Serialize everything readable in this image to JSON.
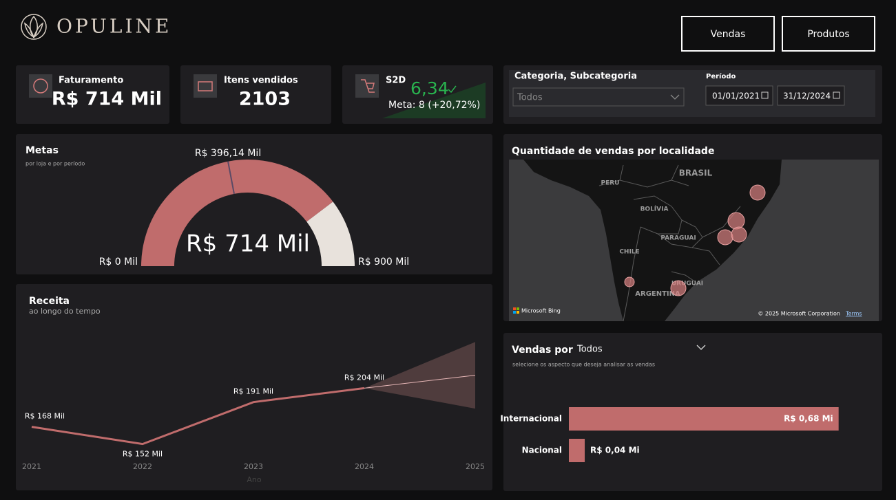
{
  "header": {
    "brand": "OPULINE",
    "buttons": [
      "Vendas",
      "Produtos"
    ]
  },
  "kpis": [
    {
      "label": "Faturamento",
      "value": "R$ 714 Mil"
    },
    {
      "label": "Itens vendidos",
      "value": "2103"
    },
    {
      "label": "S2D",
      "value": "6,34",
      "goal": "Meta: 8 (+20,72%)"
    }
  ],
  "filters": {
    "category_label": "Categoria, Subcategoria",
    "category_value": "Todos",
    "period_label": "Período",
    "start": "01/01/2021",
    "end": "31/12/2024"
  },
  "gauge": {
    "title": "Metas",
    "subtitle": "por loja e por período",
    "value": 714,
    "value_label": "R$ 714 Mil",
    "min": 0,
    "min_label": "R$ 0 Mil",
    "max": 900,
    "max_label": "R$ 900 Mil",
    "target": 396.14,
    "target_label": "R$ 396,14 Mil"
  },
  "map": {
    "title": "Quantidade de vendas por localidade",
    "labels": [
      "BRASIL",
      "PERU",
      "BOLÍVIA",
      "PARAGUAI",
      "CHILE",
      "URUGUAI",
      "ARGENTINA"
    ],
    "provider": "Microsoft Bing",
    "copyright": "© 2025 Microsoft Corporation",
    "terms": "Terms"
  },
  "receita": {
    "type": "line",
    "title": "Receita",
    "subtitle": "ao longo do tempo",
    "x_label": "Ano",
    "color": "#c06c6c",
    "categories": [
      "2021",
      "2022",
      "2023",
      "2024",
      "2025"
    ],
    "values": [
      168,
      152,
      191,
      204,
      null
    ],
    "value_labels": [
      "R$ 168 Mil",
      "R$ 152 Mil",
      "R$ 191 Mil",
      "R$ 204 Mil",
      null
    ],
    "forecast": {
      "value": 216,
      "lower": 185,
      "upper": 247
    },
    "ylim": [
      130,
      258
    ]
  },
  "vendas": {
    "type": "bar",
    "title": "Vendas por",
    "selector": "Todos",
    "subtitle": "selecione os aspecto que deseja analisar as vendas",
    "color": "#c06c6c",
    "categories": [
      "Internacional",
      "Nacional"
    ],
    "values": [
      0.68,
      0.04
    ],
    "value_labels": [
      "R$ 0,68 Mi",
      "R$ 0,04 Mi"
    ],
    "xlim": [
      0,
      0.75
    ]
  }
}
